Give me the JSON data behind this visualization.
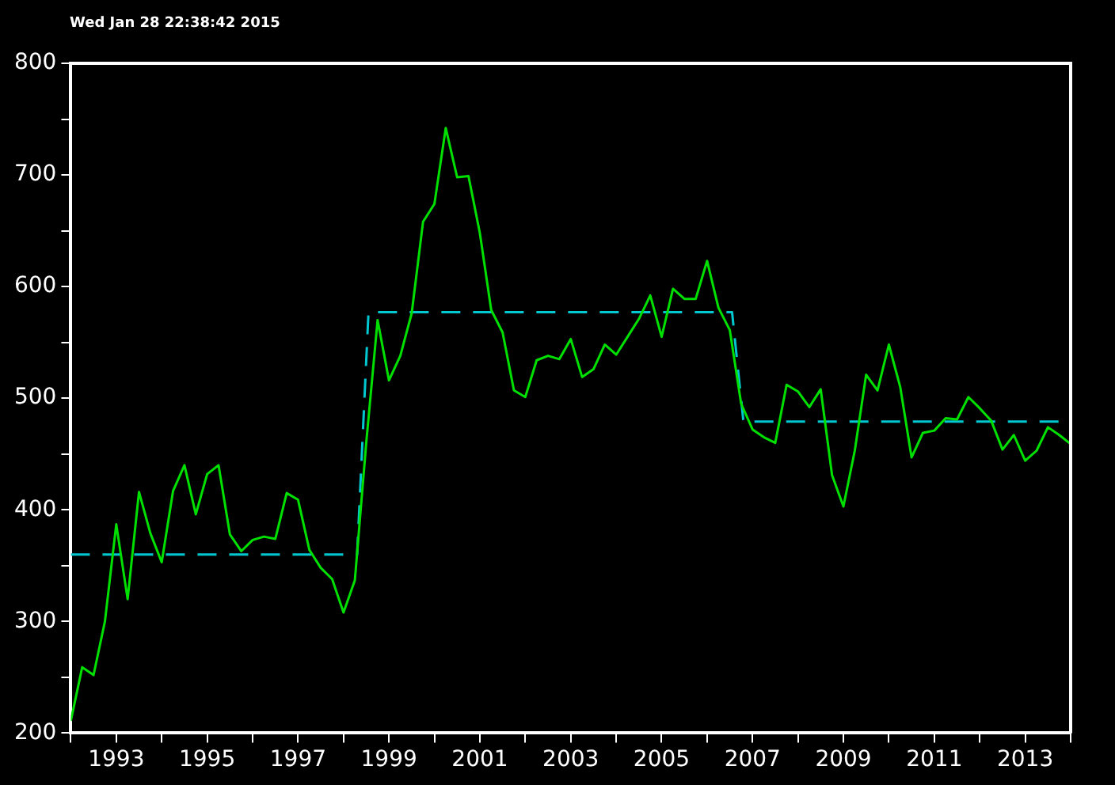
{
  "chart_data": {
    "type": "line",
    "annotations": [
      "Wed Jan 28 22:38:42 2015"
    ],
    "xlim": [
      1992,
      2014
    ],
    "ylim": [
      200,
      800
    ],
    "xticks": [
      {
        "value": 1992,
        "label": null
      },
      1993,
      {
        "value": 1994,
        "label": null
      },
      1995,
      {
        "value": 1996,
        "label": null
      },
      1997,
      {
        "value": 1998,
        "label": null
      },
      1999,
      {
        "value": 2000,
        "label": null
      },
      2001,
      {
        "value": 2002,
        "label": null
      },
      2003,
      {
        "value": 2004,
        "label": null
      },
      2005,
      {
        "value": 2006,
        "label": null
      },
      2007,
      {
        "value": 2008,
        "label": null
      },
      2009,
      {
        "value": 2010,
        "label": null
      },
      2011,
      {
        "value": 2012,
        "label": null
      },
      2013,
      {
        "value": 2014,
        "label": null
      }
    ],
    "yticks": [
      200,
      {
        "value": 250,
        "label": null
      },
      300,
      {
        "value": 350,
        "label": null
      },
      400,
      {
        "value": 450,
        "label": null
      },
      500,
      {
        "value": 550,
        "label": null
      },
      600,
      {
        "value": 650,
        "label": null
      },
      700,
      {
        "value": 750,
        "label": null
      },
      800
    ],
    "grid": false,
    "legend": false,
    "marker": "none",
    "series": [
      {
        "color": "#00e000",
        "line_style": "solid",
        "x": [
          1992,
          1992.25,
          1992.5,
          1992.75,
          1993,
          1993.25,
          1993.5,
          1993.75,
          1994,
          1994.25,
          1994.5,
          1994.75,
          1995,
          1995.25,
          1995.5,
          1995.75,
          1996,
          1996.25,
          1996.5,
          1996.75,
          1997,
          1997.25,
          1997.5,
          1997.75,
          1998,
          1998.25,
          1998.5,
          1998.75,
          1999,
          1999.25,
          1999.5,
          1999.75,
          2000,
          2000.25,
          2000.5,
          2000.75,
          2001,
          2001.25,
          2001.5,
          2001.75,
          2002,
          2002.25,
          2002.5,
          2002.75,
          2003,
          2003.25,
          2003.5,
          2003.75,
          2004,
          2004.25,
          2004.5,
          2004.75,
          2005,
          2005.25,
          2005.5,
          2005.75,
          2006,
          2006.25,
          2006.5,
          2006.75,
          2007,
          2007.25,
          2007.5,
          2007.75,
          2008,
          2008.25,
          2008.5,
          2008.75,
          2009,
          2009.25,
          2009.5,
          2009.75,
          2010,
          2010.25,
          2010.5,
          2010.75,
          2011,
          2011.25,
          2011.5,
          2011.75,
          2012,
          2012.25,
          2012.5,
          2012.75,
          2013,
          2013.25,
          2013.5,
          2013.75,
          2014
        ],
        "values": [
          211,
          259,
          252,
          300,
          387,
          320,
          416,
          379,
          353,
          417,
          440,
          396,
          432,
          440,
          378,
          363,
          373,
          376,
          374,
          415,
          409,
          364,
          348,
          338,
          308,
          337,
          460,
          570,
          516,
          538,
          576,
          658,
          674,
          742,
          698,
          699,
          648,
          579,
          559,
          507,
          501,
          534,
          538,
          535,
          553,
          519,
          526,
          548,
          539,
          555,
          571,
          592,
          555,
          598,
          589,
          589,
          623,
          581,
          561,
          495,
          472,
          465,
          460,
          512,
          506,
          492,
          508,
          431,
          403,
          453,
          521,
          507,
          548,
          510,
          447,
          469,
          471,
          482,
          481,
          501,
          491,
          480,
          454,
          467,
          444,
          453,
          474,
          467,
          459
        ]
      },
      {
        "color": "#00c8d0",
        "line_style": "dashed",
        "x": [
          1992,
          1998.3,
          1998.55,
          2006.55,
          2006.8,
          2014
        ],
        "values": [
          360,
          360,
          577,
          577,
          479,
          479
        ]
      }
    ]
  }
}
